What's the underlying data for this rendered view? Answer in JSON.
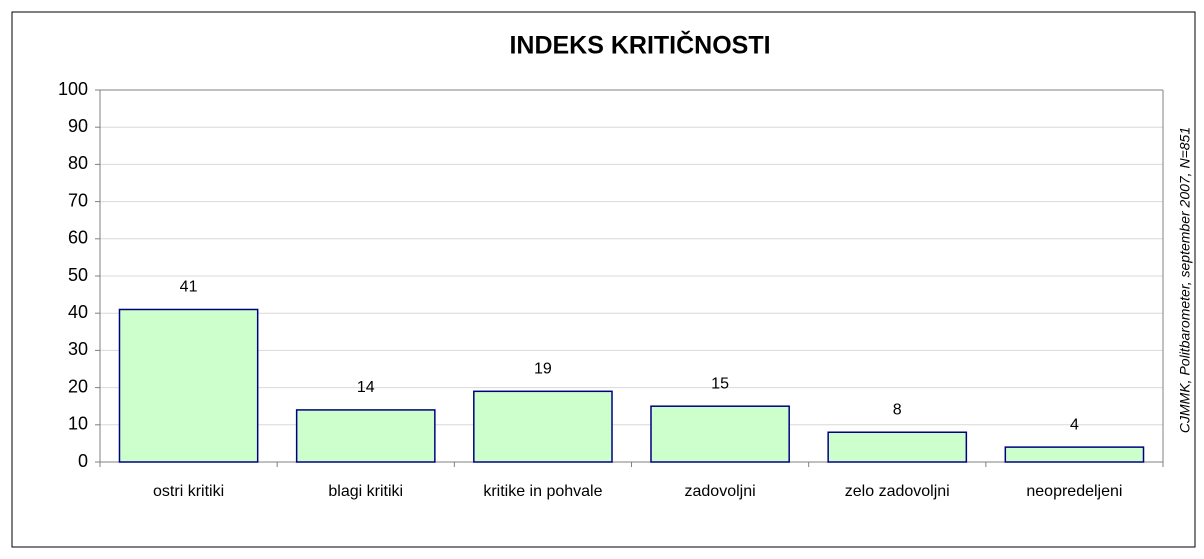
{
  "chart_data": {
    "type": "bar",
    "title": "INDEKS KRITIČNOSTI",
    "categories": [
      "ostri kritiki",
      "blagi kritiki",
      "kritike in pohvale",
      "zadovoljni",
      "zelo zadovoljni",
      "neopredeljeni"
    ],
    "values": [
      41,
      14,
      19,
      15,
      8,
      4
    ],
    "color": "#ccffcc",
    "edge_color": "#000080",
    "ylim": [
      0,
      100
    ],
    "yticks": [
      0,
      10,
      20,
      30,
      40,
      50,
      60,
      70,
      80,
      90,
      100
    ],
    "grid": true,
    "source": "CJMMK, Politbarometer, september 2007, N=851"
  }
}
